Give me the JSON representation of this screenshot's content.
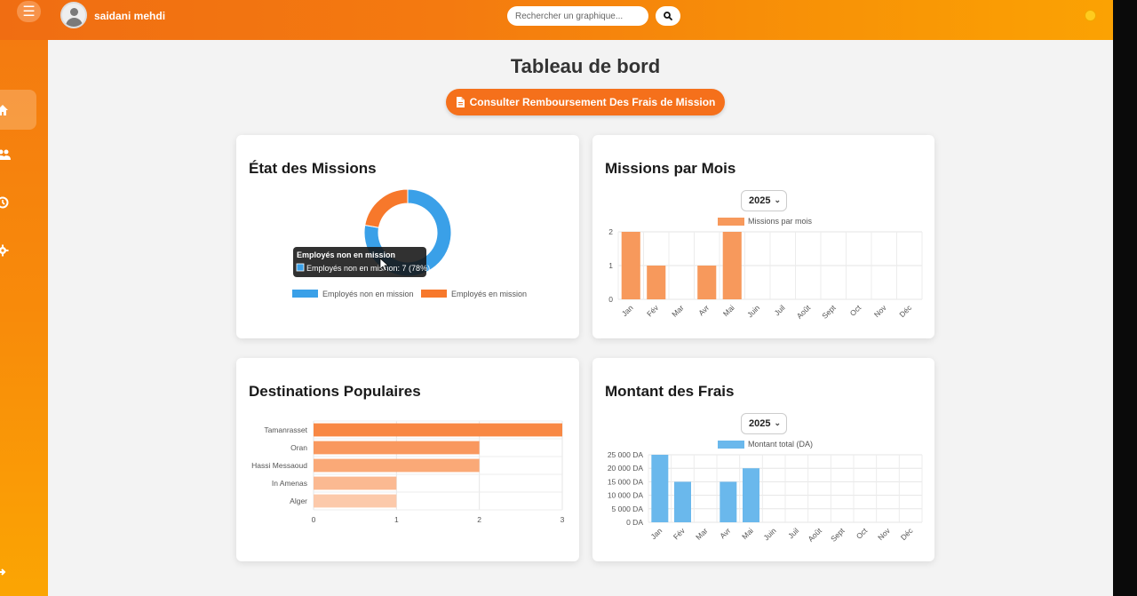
{
  "header": {
    "username": "saidani mehdi",
    "search_placeholder": "Rechercher un graphique..."
  },
  "sidebar": {
    "items": [
      {
        "icon": "home-icon",
        "active": true
      },
      {
        "icon": "users-icon",
        "active": false
      },
      {
        "icon": "clock-icon",
        "active": false
      },
      {
        "icon": "gear-icon",
        "active": false
      }
    ]
  },
  "main": {
    "title": "Tableau de bord",
    "cta_label": "Consulter Remboursement Des Frais de Mission"
  },
  "cards": {
    "etat": {
      "title": "État des Missions"
    },
    "missions_mois": {
      "title": "Missions par Mois",
      "year": "2025"
    },
    "destinations": {
      "title": "Destinations Populaires"
    },
    "frais": {
      "title": "Montant des Frais",
      "year": "2025"
    }
  },
  "colors": {
    "blue": "#3aa0e8",
    "orange": "#f7782b",
    "accent": "#f5701b"
  },
  "chart_data": [
    {
      "type": "pie",
      "title": "État des Missions",
      "categories": [
        "Employés non en mission",
        "Employés en mission"
      ],
      "values": [
        7,
        2
      ],
      "colors": [
        "#3aa0e8",
        "#f7782b"
      ],
      "legend": "bottom",
      "tooltip": {
        "title": "Employés non en mission",
        "label": "Employés non en mission: 7 (78%)"
      }
    },
    {
      "type": "bar",
      "title": "Missions par Mois",
      "categories": [
        "Jan",
        "Fév",
        "Mar",
        "Avr",
        "Mai",
        "Juin",
        "Juil",
        "Août",
        "Sept",
        "Oct",
        "Nov",
        "Déc"
      ],
      "series": [
        {
          "name": "Missions par mois",
          "values": [
            2,
            1,
            0,
            1,
            2,
            0,
            0,
            0,
            0,
            0,
            0,
            0
          ]
        }
      ],
      "ylim": [
        0,
        2
      ],
      "yticks": [
        "0",
        "1",
        "2"
      ],
      "grid": true,
      "legend": "top"
    },
    {
      "type": "bar",
      "orientation": "horizontal",
      "title": "Destinations Populaires",
      "categories": [
        "Tamanrasset",
        "Oran",
        "Hassi Messaoud",
        "In Amenas",
        "Alger"
      ],
      "values": [
        3,
        2,
        2,
        1,
        1
      ],
      "xlim": [
        0,
        3
      ],
      "xticks": [
        "0",
        "1",
        "2",
        "3"
      ],
      "grid": true
    },
    {
      "type": "bar",
      "title": "Montant des Frais",
      "categories": [
        "Jan",
        "Fév",
        "Mar",
        "Avr",
        "Mai",
        "Juin",
        "Juil",
        "Août",
        "Sept",
        "Oct",
        "Nov",
        "Déc"
      ],
      "series": [
        {
          "name": "Montant total (DA)",
          "values": [
            25000,
            15000,
            0,
            15000,
            20000,
            0,
            0,
            0,
            0,
            0,
            0,
            0
          ]
        }
      ],
      "ylim": [
        0,
        25000
      ],
      "yticks": [
        "0 DA",
        "5 000 DA",
        "10 000 DA",
        "15 000 DA",
        "20 000 DA",
        "25 000 DA"
      ],
      "grid": true,
      "legend": "top"
    }
  ]
}
